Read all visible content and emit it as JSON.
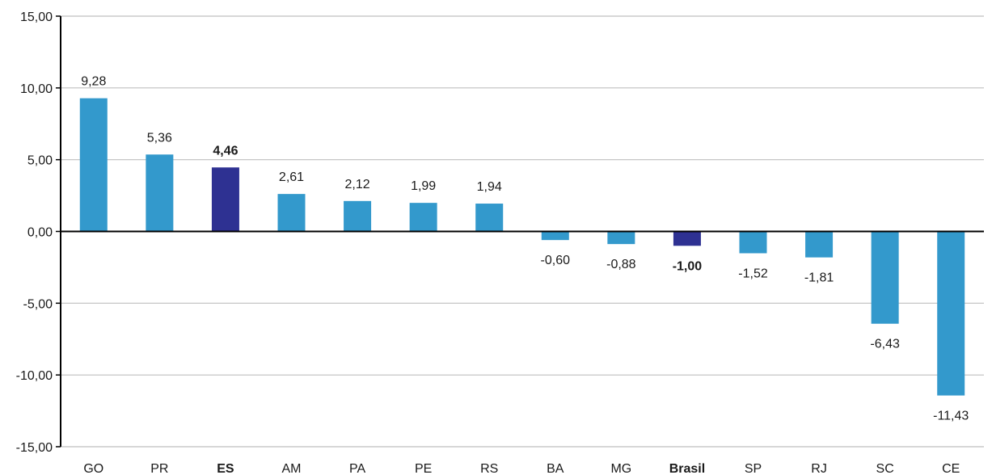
{
  "chart_data": {
    "type": "bar",
    "title": "",
    "xlabel": "",
    "ylabel": "",
    "ylim": [
      -15,
      15
    ],
    "yticks": [
      "15,00",
      "10,00",
      "5,00",
      "0,00",
      "-5,00",
      "-10,00",
      "-15,00"
    ],
    "ytick_values": [
      15,
      10,
      5,
      0,
      -5,
      -10,
      -15
    ],
    "grid": true,
    "legend": "none",
    "categories": [
      "GO",
      "PR",
      "ES",
      "AM",
      "PA",
      "PE",
      "RS",
      "BA",
      "MG",
      "Brasil",
      "SP",
      "RJ",
      "SC",
      "CE"
    ],
    "values": [
      9.28,
      5.36,
      4.46,
      2.61,
      2.12,
      1.99,
      1.94,
      -0.6,
      -0.88,
      -1.0,
      -1.52,
      -1.81,
      -6.43,
      -11.43
    ],
    "value_labels": [
      "9,28",
      "5,36",
      "4,46",
      "2,61",
      "2,12",
      "1,99",
      "1,94",
      "-0,60",
      "-0,88",
      "-1,00",
      "-1,52",
      "-1,81",
      "-6,43",
      "-11,43"
    ],
    "highlighted": [
      "ES",
      "Brasil"
    ],
    "colors": {
      "default_bar": "#3399cc",
      "highlight_bar": "#2e3192",
      "axis": "#000000",
      "grid": "#bfbfbf",
      "text": "#1a1a1a"
    }
  }
}
